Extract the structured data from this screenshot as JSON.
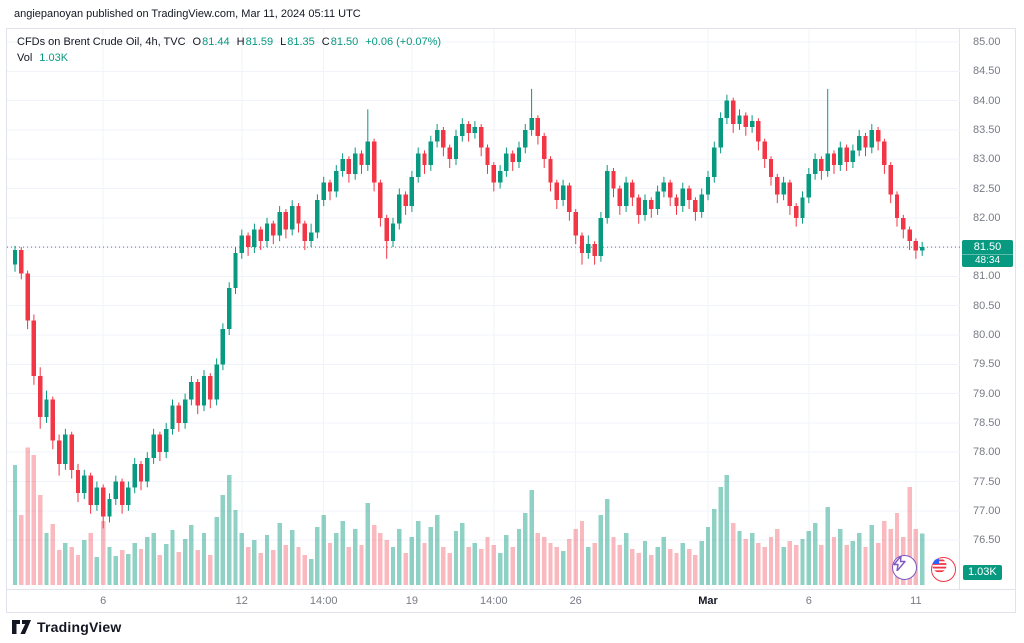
{
  "attribution": "angiepanoyan published on TradingView.com, Mar 11, 2024 05:11 UTC",
  "legend": {
    "title": "CFDs on Brent Crude Oil, 4h, TVC",
    "o_label": "O",
    "o": "81.44",
    "h_label": "H",
    "h": "81.59",
    "l_label": "L",
    "l": "81.35",
    "c_label": "C",
    "c": "81.50",
    "change": "+0.06 (+0.07%)",
    "vol_label": "Vol",
    "vol_value": "1.03K"
  },
  "price_axis": {
    "last_price": "81.50",
    "countdown": "48:34",
    "volume_badge": "1.03K"
  },
  "footer": {
    "brand": "TradingView"
  },
  "colors": {
    "up": "#089981",
    "down": "#F23645",
    "vol_up": "rgba(8,153,129,0.45)",
    "vol_down": "rgba(242,54,69,0.35)",
    "grid": "#f0f3fa",
    "axis_text": "#787b86",
    "price_line": "#089981"
  },
  "chart_data": {
    "type": "candlestick",
    "symbol": "CFDs on Brent Crude Oil",
    "interval": "4h",
    "exchange": "TVC",
    "title": "CFDs on Brent Crude Oil, 4h, TVC",
    "ohlc_display": {
      "open": 81.44,
      "high": 81.59,
      "low": 81.35,
      "close": 81.5,
      "change": 0.06,
      "change_pct": 0.07
    },
    "current_volume": 1030,
    "price_line": 81.5,
    "y_ticks": [
      "85.00",
      "84.50",
      "84.00",
      "83.50",
      "83.00",
      "82.50",
      "82.00",
      "81.50",
      "81.00",
      "80.50",
      "80.00",
      "79.50",
      "79.00",
      "78.50",
      "78.00",
      "77.50",
      "77.00",
      "76.50"
    ],
    "x_ticks": [
      {
        "index": 14,
        "label": "6",
        "bold": false
      },
      {
        "index": 36,
        "label": "12",
        "bold": false
      },
      {
        "index": 49,
        "label": "14:00",
        "bold": false
      },
      {
        "index": 63,
        "label": "19",
        "bold": false
      },
      {
        "index": 76,
        "label": "14:00",
        "bold": false
      },
      {
        "index": 89,
        "label": "26",
        "bold": false
      },
      {
        "index": 110,
        "label": "Mar",
        "bold": true
      },
      {
        "index": 126,
        "label": "6",
        "bold": false
      },
      {
        "index": 143,
        "label": "11",
        "bold": false
      }
    ],
    "candles_format": [
      "open",
      "high",
      "low",
      "close",
      "volume"
    ],
    "candles": [
      [
        81.2,
        81.52,
        81.08,
        81.45,
        2400
      ],
      [
        81.45,
        81.5,
        80.95,
        81.05,
        1400
      ],
      [
        81.05,
        81.1,
        80.1,
        80.25,
        2750
      ],
      [
        80.25,
        80.35,
        79.15,
        79.3,
        2600
      ],
      [
        79.3,
        79.45,
        78.4,
        78.6,
        1800
      ],
      [
        78.6,
        79.05,
        78.5,
        78.9,
        1040
      ],
      [
        78.9,
        78.95,
        78.05,
        78.2,
        1220
      ],
      [
        78.2,
        78.3,
        77.6,
        77.8,
        700
      ],
      [
        77.8,
        78.4,
        77.7,
        78.3,
        840
      ],
      [
        78.3,
        78.35,
        77.55,
        77.7,
        760
      ],
      [
        77.7,
        77.8,
        77.15,
        77.3,
        600
      ],
      [
        77.3,
        77.7,
        77.2,
        77.6,
        900
      ],
      [
        77.6,
        77.65,
        76.95,
        77.1,
        1040
      ],
      [
        77.1,
        77.5,
        77.0,
        77.4,
        560
      ],
      [
        77.4,
        77.45,
        76.7,
        76.9,
        1280
      ],
      [
        76.9,
        77.3,
        76.8,
        77.2,
        760
      ],
      [
        77.2,
        77.6,
        77.1,
        77.5,
        580
      ],
      [
        77.5,
        77.55,
        76.95,
        77.1,
        700
      ],
      [
        77.1,
        77.5,
        77.0,
        77.4,
        620
      ],
      [
        77.4,
        77.9,
        77.3,
        77.8,
        840
      ],
      [
        77.8,
        77.85,
        77.35,
        77.5,
        720
      ],
      [
        77.5,
        78.0,
        77.4,
        77.9,
        960
      ],
      [
        77.9,
        78.4,
        77.8,
        78.3,
        1040
      ],
      [
        78.3,
        78.35,
        77.85,
        78.0,
        600
      ],
      [
        78.0,
        78.5,
        77.9,
        78.4,
        820
      ],
      [
        78.4,
        78.9,
        78.3,
        78.8,
        1100
      ],
      [
        78.8,
        78.85,
        78.35,
        78.5,
        660
      ],
      [
        78.5,
        79.0,
        78.4,
        78.9,
        920
      ],
      [
        78.9,
        79.3,
        78.8,
        79.2,
        1200
      ],
      [
        79.2,
        79.25,
        78.65,
        78.8,
        700
      ],
      [
        78.8,
        79.4,
        78.7,
        79.3,
        1040
      ],
      [
        79.3,
        79.35,
        78.75,
        78.9,
        600
      ],
      [
        78.9,
        79.6,
        78.8,
        79.5,
        1360
      ],
      [
        79.5,
        80.2,
        79.4,
        80.1,
        1800
      ],
      [
        80.1,
        80.9,
        80.0,
        80.8,
        2200
      ],
      [
        80.8,
        81.5,
        80.7,
        81.4,
        1500
      ],
      [
        81.4,
        81.8,
        81.3,
        81.7,
        1040
      ],
      [
        81.7,
        81.75,
        81.35,
        81.5,
        760
      ],
      [
        81.5,
        81.9,
        81.4,
        81.8,
        900
      ],
      [
        81.8,
        81.85,
        81.45,
        81.6,
        640
      ],
      [
        81.6,
        82.0,
        81.5,
        81.9,
        1000
      ],
      [
        81.9,
        81.95,
        81.55,
        81.7,
        700
      ],
      [
        81.7,
        82.2,
        81.6,
        82.1,
        1240
      ],
      [
        82.1,
        82.15,
        81.65,
        81.8,
        800
      ],
      [
        81.8,
        82.3,
        81.7,
        82.2,
        1100
      ],
      [
        82.2,
        82.25,
        81.75,
        81.9,
        760
      ],
      [
        81.9,
        81.95,
        81.45,
        81.6,
        600
      ],
      [
        81.6,
        81.9,
        81.5,
        81.75,
        520
      ],
      [
        81.75,
        82.4,
        81.65,
        82.3,
        1160
      ],
      [
        82.3,
        82.7,
        82.2,
        82.6,
        1400
      ],
      [
        82.6,
        82.65,
        82.3,
        82.45,
        840
      ],
      [
        82.45,
        82.9,
        82.35,
        82.8,
        1040
      ],
      [
        82.8,
        83.1,
        82.7,
        83.0,
        1280
      ],
      [
        83.0,
        83.05,
        82.6,
        82.75,
        760
      ],
      [
        82.75,
        83.2,
        82.65,
        83.1,
        1120
      ],
      [
        83.1,
        83.15,
        82.75,
        82.9,
        800
      ],
      [
        82.9,
        83.85,
        82.8,
        83.3,
        1640
      ],
      [
        83.3,
        83.35,
        82.45,
        82.6,
        1200
      ],
      [
        82.6,
        82.65,
        81.85,
        82.0,
        1040
      ],
      [
        82.0,
        82.05,
        81.3,
        81.6,
        900
      ],
      [
        81.6,
        82.0,
        81.5,
        81.9,
        760
      ],
      [
        81.9,
        82.5,
        81.8,
        82.4,
        1120
      ],
      [
        82.4,
        82.45,
        82.05,
        82.2,
        640
      ],
      [
        82.2,
        82.8,
        82.1,
        82.7,
        960
      ],
      [
        82.7,
        83.2,
        82.6,
        83.1,
        1280
      ],
      [
        83.1,
        83.15,
        82.75,
        82.9,
        840
      ],
      [
        82.9,
        83.4,
        82.8,
        83.3,
        1160
      ],
      [
        83.3,
        83.6,
        83.2,
        83.5,
        1400
      ],
      [
        83.5,
        83.55,
        83.05,
        83.2,
        760
      ],
      [
        83.2,
        83.25,
        82.85,
        83.0,
        640
      ],
      [
        83.0,
        83.5,
        82.9,
        83.4,
        1080
      ],
      [
        83.4,
        83.7,
        83.3,
        83.6,
        1240
      ],
      [
        83.6,
        83.65,
        83.3,
        83.45,
        760
      ],
      [
        83.45,
        83.65,
        83.35,
        83.55,
        840
      ],
      [
        83.55,
        83.6,
        83.05,
        83.2,
        720
      ],
      [
        83.2,
        83.25,
        82.75,
        82.9,
        960
      ],
      [
        82.9,
        82.95,
        82.45,
        82.6,
        800
      ],
      [
        82.6,
        82.9,
        82.5,
        82.8,
        640
      ],
      [
        82.8,
        83.2,
        82.7,
        83.1,
        1000
      ],
      [
        83.1,
        83.15,
        82.8,
        82.95,
        760
      ],
      [
        82.95,
        83.3,
        82.85,
        83.2,
        1120
      ],
      [
        83.2,
        83.6,
        83.1,
        83.5,
        1440
      ],
      [
        83.5,
        84.2,
        83.4,
        83.7,
        1900
      ],
      [
        83.7,
        83.75,
        83.25,
        83.4,
        1040
      ],
      [
        83.4,
        83.45,
        82.85,
        83.0,
        960
      ],
      [
        83.0,
        83.05,
        82.45,
        82.6,
        840
      ],
      [
        82.6,
        82.65,
        82.15,
        82.3,
        760
      ],
      [
        82.3,
        82.65,
        82.2,
        82.55,
        680
      ],
      [
        82.55,
        82.6,
        81.95,
        82.1,
        920
      ],
      [
        82.1,
        82.15,
        81.55,
        81.7,
        1120
      ],
      [
        81.7,
        81.75,
        81.2,
        81.4,
        1280
      ],
      [
        81.4,
        81.7,
        81.3,
        81.55,
        760
      ],
      [
        81.55,
        81.6,
        81.2,
        81.35,
        840
      ],
      [
        81.35,
        82.1,
        81.25,
        82.0,
        1400
      ],
      [
        82.0,
        82.9,
        81.9,
        82.8,
        1720
      ],
      [
        82.8,
        82.85,
        82.35,
        82.5,
        960
      ],
      [
        82.5,
        82.55,
        82.05,
        82.2,
        800
      ],
      [
        82.2,
        82.7,
        82.1,
        82.6,
        1040
      ],
      [
        82.6,
        82.65,
        82.2,
        82.35,
        720
      ],
      [
        82.35,
        82.4,
        81.9,
        82.05,
        640
      ],
      [
        82.05,
        82.4,
        81.95,
        82.3,
        880
      ],
      [
        82.3,
        82.35,
        82.0,
        82.15,
        600
      ],
      [
        82.15,
        82.55,
        82.05,
        82.45,
        760
      ],
      [
        82.45,
        82.7,
        82.35,
        82.6,
        960
      ],
      [
        82.6,
        82.65,
        82.2,
        82.35,
        720
      ],
      [
        82.35,
        82.4,
        82.05,
        82.2,
        640
      ],
      [
        82.2,
        82.6,
        82.1,
        82.5,
        840
      ],
      [
        82.5,
        82.55,
        82.15,
        82.3,
        720
      ],
      [
        82.3,
        82.35,
        81.95,
        82.1,
        600
      ],
      [
        82.1,
        82.5,
        82.0,
        82.4,
        880
      ],
      [
        82.4,
        82.8,
        82.3,
        82.7,
        1160
      ],
      [
        82.7,
        83.3,
        82.6,
        83.2,
        1520
      ],
      [
        83.2,
        83.8,
        83.1,
        83.7,
        1960
      ],
      [
        83.7,
        84.1,
        83.6,
        84.0,
        2200
      ],
      [
        84.0,
        84.05,
        83.45,
        83.6,
        1240
      ],
      [
        83.6,
        83.85,
        83.5,
        83.75,
        1080
      ],
      [
        83.75,
        83.8,
        83.4,
        83.55,
        920
      ],
      [
        83.55,
        83.75,
        83.45,
        83.65,
        1040
      ],
      [
        83.65,
        83.7,
        83.15,
        83.3,
        840
      ],
      [
        83.3,
        83.35,
        82.85,
        83.0,
        760
      ],
      [
        83.0,
        83.05,
        82.55,
        82.7,
        960
      ],
      [
        82.7,
        82.75,
        82.25,
        82.4,
        1120
      ],
      [
        82.4,
        82.7,
        82.3,
        82.6,
        760
      ],
      [
        82.6,
        82.65,
        82.05,
        82.2,
        880
      ],
      [
        82.2,
        82.25,
        81.85,
        82.0,
        800
      ],
      [
        82.0,
        82.45,
        81.9,
        82.35,
        920
      ],
      [
        82.35,
        82.85,
        82.25,
        82.75,
        1080
      ],
      [
        82.75,
        83.1,
        82.65,
        83.0,
        1240
      ],
      [
        83.0,
        83.05,
        82.65,
        82.8,
        800
      ],
      [
        82.8,
        84.2,
        82.7,
        83.1,
        1560
      ],
      [
        83.1,
        83.15,
        82.75,
        82.9,
        960
      ],
      [
        82.9,
        83.3,
        82.8,
        83.2,
        1120
      ],
      [
        83.2,
        83.25,
        82.8,
        82.95,
        800
      ],
      [
        82.95,
        83.25,
        82.85,
        83.15,
        880
      ],
      [
        83.15,
        83.5,
        83.05,
        83.4,
        1040
      ],
      [
        83.4,
        83.45,
        83.05,
        83.2,
        760
      ],
      [
        83.2,
        83.6,
        83.1,
        83.5,
        1200
      ],
      [
        83.5,
        83.55,
        83.15,
        83.3,
        840
      ],
      [
        83.3,
        83.35,
        82.75,
        82.9,
        1280
      ],
      [
        82.9,
        82.95,
        82.25,
        82.4,
        1120
      ],
      [
        82.4,
        82.45,
        81.85,
        82.0,
        1440
      ],
      [
        82.0,
        82.05,
        81.65,
        81.8,
        960
      ],
      [
        81.8,
        81.85,
        81.45,
        81.6,
        1960
      ],
      [
        81.6,
        81.65,
        81.3,
        81.44,
        1120
      ],
      [
        81.44,
        81.59,
        81.35,
        81.5,
        1030
      ]
    ]
  }
}
